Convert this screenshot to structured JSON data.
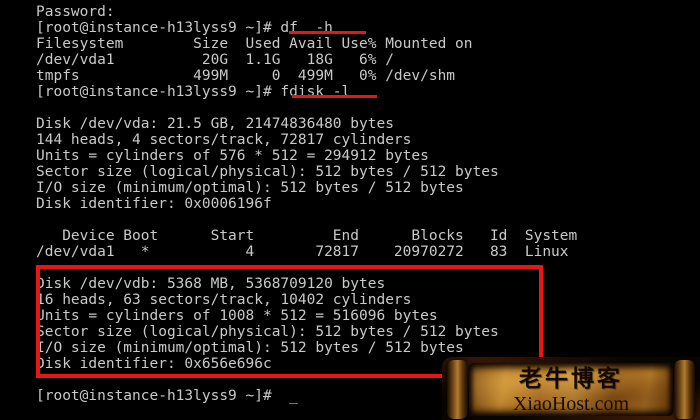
{
  "terminal": {
    "background_color": "#000000",
    "text_color": "#c9c9c9",
    "prompt": "[root@instance-h13lyss9 ~]#",
    "cursor": "_",
    "lines": [
      "Password:",
      "[root@instance-h13lyss9 ~]# df  -h",
      "Filesystem        Size  Used Avail Use% Mounted on",
      "/dev/vda1          20G  1.1G   18G   6% /",
      "tmpfs             499M     0  499M   0% /dev/shm",
      "[root@instance-h13lyss9 ~]# fdisk -l",
      "",
      "Disk /dev/vda: 21.5 GB, 21474836480 bytes",
      "144 heads, 4 sectors/track, 72817 cylinders",
      "Units = cylinders of 576 * 512 = 294912 bytes",
      "Sector size (logical/physical): 512 bytes / 512 bytes",
      "I/O size (minimum/optimal): 512 bytes / 512 bytes",
      "Disk identifier: 0x0006196f",
      "",
      "   Device Boot      Start         End      Blocks   Id  System",
      "/dev/vda1   *           4       72817    20970272   83  Linux",
      "",
      "Disk /dev/vdb: 5368 MB, 5368709120 bytes",
      "16 heads, 63 sectors/track, 10402 cylinders",
      "Units = cylinders of 1008 * 512 = 516096 bytes",
      "Sector size (logical/physical): 512 bytes / 512 bytes",
      "I/O size (minimum/optimal): 512 bytes / 512 bytes",
      "Disk identifier: 0x656e696c",
      "",
      "[root@instance-h13lyss9 ~]#  _"
    ]
  },
  "annotations": {
    "highlight_color": "#e81616",
    "underlined_command_1": "df  -h",
    "underlined_command_2": "fdisk -l",
    "boxed_section_first_line": "Disk /dev/vdb: 5368 MB, 5368709120 bytes"
  },
  "watermark": {
    "title": "老牛博客",
    "site": "XiaoHost.com",
    "parchment_color": "#b97e2a",
    "text_color": "#120a02"
  }
}
